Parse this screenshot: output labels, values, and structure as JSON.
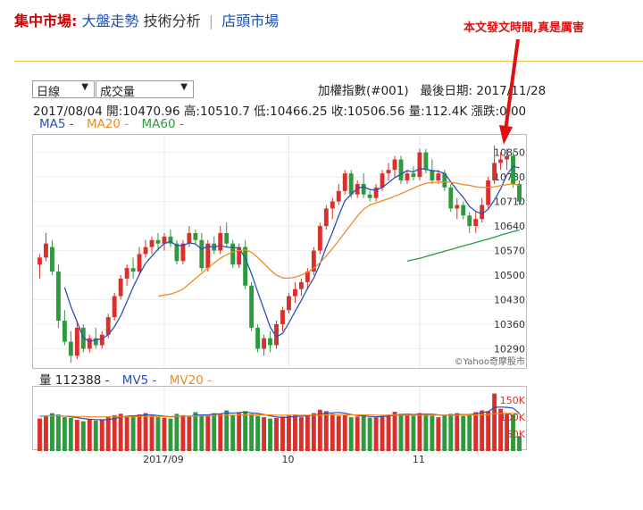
{
  "nav": {
    "market": "集中市場:",
    "trend": "大盤走勢",
    "tech": "技術分析",
    "sep": "|",
    "otc": "店頭市場"
  },
  "annotation": "本文發文時間,真是厲害",
  "controls": {
    "period": "日線",
    "indicator": "成交量"
  },
  "header": {
    "index_name": "加權指數(#001)",
    "last_date_label": "最後日期:",
    "last_date": "2017/11/28"
  },
  "quote": {
    "date": "2017/08/04",
    "open_label": "開:",
    "open": "10470.96",
    "high_label": "高:",
    "high": "10510.7",
    "low_label": "低:",
    "low": "10466.25",
    "close_label": "收:",
    "close": "10506.56",
    "vol_label": "量:",
    "vol": "112.4K",
    "chg_label": "漲跌:",
    "chg": "0.00"
  },
  "ma_legend": [
    {
      "label": "MA5 -",
      "color": "#2b4fb5"
    },
    {
      "label": "MA20 -",
      "color": "#f08a24"
    },
    {
      "label": "MA60 -",
      "color": "#2e9a3e"
    }
  ],
  "vol_legend": [
    {
      "label": "量 112388 -",
      "color": "#222222"
    },
    {
      "label": "MV5 -",
      "color": "#2b4fb5"
    },
    {
      "label": "MV20 -",
      "color": "#f08a24"
    }
  ],
  "watermark": "©Yahoo奇摩股市",
  "colors": {
    "up": "#d9302c",
    "down": "#2e9a3e",
    "ma5": "#2b4fb5",
    "ma20": "#f08a24",
    "ma60": "#2e9a3e",
    "arrow": "#e01010"
  },
  "chart_data": {
    "type": "candlestick",
    "title": "",
    "price_ticks": [
      10850,
      10780,
      10710,
      10640,
      10570,
      10500,
      10430,
      10360,
      10290
    ],
    "price_range": [
      10230,
      10900
    ],
    "volume_ticks": [
      "150K",
      "100K",
      "50K"
    ],
    "volume_range": [
      0,
      190
    ],
    "x_tick_labels": [
      {
        "label": "2017/09",
        "index": 20
      },
      {
        "label": "10",
        "index": 40
      },
      {
        "label": "11",
        "index": 61
      }
    ],
    "candles": [
      {
        "o": 10530,
        "h": 10560,
        "l": 10490,
        "c": 10550
      },
      {
        "o": 10550,
        "h": 10620,
        "l": 10540,
        "c": 10590
      },
      {
        "o": 10580,
        "h": 10600,
        "l": 10500,
        "c": 10510
      },
      {
        "o": 10510,
        "h": 10530,
        "l": 10350,
        "c": 10370
      },
      {
        "o": 10370,
        "h": 10400,
        "l": 10300,
        "c": 10310
      },
      {
        "o": 10310,
        "h": 10340,
        "l": 10250,
        "c": 10270
      },
      {
        "o": 10270,
        "h": 10370,
        "l": 10260,
        "c": 10350
      },
      {
        "o": 10350,
        "h": 10360,
        "l": 10280,
        "c": 10290
      },
      {
        "o": 10290,
        "h": 10330,
        "l": 10280,
        "c": 10320
      },
      {
        "o": 10320,
        "h": 10350,
        "l": 10290,
        "c": 10300
      },
      {
        "o": 10300,
        "h": 10340,
        "l": 10290,
        "c": 10330
      },
      {
        "o": 10330,
        "h": 10390,
        "l": 10320,
        "c": 10380
      },
      {
        "o": 10380,
        "h": 10450,
        "l": 10370,
        "c": 10440
      },
      {
        "o": 10440,
        "h": 10500,
        "l": 10430,
        "c": 10490
      },
      {
        "o": 10490,
        "h": 10530,
        "l": 10470,
        "c": 10520
      },
      {
        "o": 10520,
        "h": 10550,
        "l": 10490,
        "c": 10510
      },
      {
        "o": 10510,
        "h": 10580,
        "l": 10500,
        "c": 10560
      },
      {
        "o": 10560,
        "h": 10600,
        "l": 10550,
        "c": 10580
      },
      {
        "o": 10580,
        "h": 10610,
        "l": 10560,
        "c": 10600
      },
      {
        "o": 10600,
        "h": 10620,
        "l": 10570,
        "c": 10590
      },
      {
        "o": 10590,
        "h": 10620,
        "l": 10570,
        "c": 10610
      },
      {
        "o": 10610,
        "h": 10630,
        "l": 10580,
        "c": 10590
      },
      {
        "o": 10590,
        "h": 10600,
        "l": 10530,
        "c": 10540
      },
      {
        "o": 10540,
        "h": 10600,
        "l": 10530,
        "c": 10590
      },
      {
        "o": 10590,
        "h": 10640,
        "l": 10580,
        "c": 10620
      },
      {
        "o": 10620,
        "h": 10630,
        "l": 10590,
        "c": 10600
      },
      {
        "o": 10600,
        "h": 10620,
        "l": 10510,
        "c": 10520
      },
      {
        "o": 10520,
        "h": 10600,
        "l": 10510,
        "c": 10590
      },
      {
        "o": 10590,
        "h": 10610,
        "l": 10560,
        "c": 10570
      },
      {
        "o": 10570,
        "h": 10640,
        "l": 10560,
        "c": 10620
      },
      {
        "o": 10620,
        "h": 10650,
        "l": 10580,
        "c": 10590
      },
      {
        "o": 10590,
        "h": 10600,
        "l": 10520,
        "c": 10530
      },
      {
        "o": 10530,
        "h": 10590,
        "l": 10520,
        "c": 10580
      },
      {
        "o": 10580,
        "h": 10600,
        "l": 10460,
        "c": 10470
      },
      {
        "o": 10470,
        "h": 10480,
        "l": 10340,
        "c": 10350
      },
      {
        "o": 10350,
        "h": 10360,
        "l": 10280,
        "c": 10290
      },
      {
        "o": 10290,
        "h": 10330,
        "l": 10270,
        "c": 10320
      },
      {
        "o": 10320,
        "h": 10340,
        "l": 10280,
        "c": 10300
      },
      {
        "o": 10300,
        "h": 10370,
        "l": 10290,
        "c": 10360
      },
      {
        "o": 10360,
        "h": 10410,
        "l": 10340,
        "c": 10400
      },
      {
        "o": 10400,
        "h": 10450,
        "l": 10390,
        "c": 10440
      },
      {
        "o": 10440,
        "h": 10480,
        "l": 10420,
        "c": 10460
      },
      {
        "o": 10460,
        "h": 10490,
        "l": 10440,
        "c": 10480
      },
      {
        "o": 10480,
        "h": 10520,
        "l": 10460,
        "c": 10510
      },
      {
        "o": 10510,
        "h": 10580,
        "l": 10500,
        "c": 10570
      },
      {
        "o": 10570,
        "h": 10650,
        "l": 10560,
        "c": 10640
      },
      {
        "o": 10640,
        "h": 10700,
        "l": 10630,
        "c": 10690
      },
      {
        "o": 10690,
        "h": 10720,
        "l": 10660,
        "c": 10710
      },
      {
        "o": 10710,
        "h": 10760,
        "l": 10700,
        "c": 10740
      },
      {
        "o": 10740,
        "h": 10800,
        "l": 10730,
        "c": 10790
      },
      {
        "o": 10790,
        "h": 10800,
        "l": 10720,
        "c": 10730
      },
      {
        "o": 10730,
        "h": 10770,
        "l": 10720,
        "c": 10760
      },
      {
        "o": 10760,
        "h": 10790,
        "l": 10720,
        "c": 10730
      },
      {
        "o": 10730,
        "h": 10740,
        "l": 10710,
        "c": 10720
      },
      {
        "o": 10720,
        "h": 10760,
        "l": 10710,
        "c": 10750
      },
      {
        "o": 10750,
        "h": 10800,
        "l": 10740,
        "c": 10790
      },
      {
        "o": 10790,
        "h": 10820,
        "l": 10770,
        "c": 10800
      },
      {
        "o": 10800,
        "h": 10840,
        "l": 10780,
        "c": 10830
      },
      {
        "o": 10830,
        "h": 10840,
        "l": 10760,
        "c": 10770
      },
      {
        "o": 10770,
        "h": 10800,
        "l": 10760,
        "c": 10790
      },
      {
        "o": 10790,
        "h": 10810,
        "l": 10770,
        "c": 10780
      },
      {
        "o": 10780,
        "h": 10860,
        "l": 10770,
        "c": 10850
      },
      {
        "o": 10850,
        "h": 10860,
        "l": 10790,
        "c": 10800
      },
      {
        "o": 10800,
        "h": 10830,
        "l": 10760,
        "c": 10770
      },
      {
        "o": 10770,
        "h": 10800,
        "l": 10760,
        "c": 10790
      },
      {
        "o": 10790,
        "h": 10800,
        "l": 10740,
        "c": 10750
      },
      {
        "o": 10750,
        "h": 10760,
        "l": 10680,
        "c": 10690
      },
      {
        "o": 10690,
        "h": 10720,
        "l": 10660,
        "c": 10700
      },
      {
        "o": 10700,
        "h": 10710,
        "l": 10660,
        "c": 10670
      },
      {
        "o": 10670,
        "h": 10680,
        "l": 10620,
        "c": 10640
      },
      {
        "o": 10640,
        "h": 10680,
        "l": 10620,
        "c": 10660
      },
      {
        "o": 10660,
        "h": 10720,
        "l": 10650,
        "c": 10700
      },
      {
        "o": 10700,
        "h": 10780,
        "l": 10690,
        "c": 10770
      },
      {
        "o": 10770,
        "h": 10870,
        "l": 10760,
        "c": 10820
      },
      {
        "o": 10820,
        "h": 10850,
        "l": 10800,
        "c": 10830
      },
      {
        "o": 10830,
        "h": 10860,
        "l": 10800,
        "c": 10840
      },
      {
        "o": 10840,
        "h": 10850,
        "l": 10750,
        "c": 10760
      },
      {
        "o": 10760,
        "h": 10770,
        "l": 10700,
        "c": 10710
      }
    ],
    "volume": [
      96,
      104,
      112,
      108,
      100,
      98,
      92,
      88,
      95,
      90,
      94,
      100,
      106,
      110,
      104,
      102,
      108,
      112,
      105,
      100,
      98,
      96,
      110,
      106,
      102,
      115,
      108,
      104,
      112,
      110,
      120,
      106,
      112,
      118,
      110,
      104,
      100,
      96,
      98,
      102,
      105,
      108,
      100,
      106,
      112,
      122,
      118,
      110,
      104,
      108,
      100,
      102,
      105,
      99,
      100,
      104,
      108,
      116,
      110,
      106,
      104,
      112,
      108,
      104,
      100,
      106,
      110,
      112,
      104,
      108,
      115,
      120,
      118,
      170,
      125,
      112,
      108,
      44
    ],
    "mv5": [
      103,
      104,
      105,
      104,
      103,
      101,
      99,
      96,
      94,
      93,
      92,
      93,
      96,
      100,
      103,
      104,
      105,
      107,
      107,
      105,
      103,
      101,
      102,
      103,
      103,
      106,
      107,
      107,
      109,
      110,
      113,
      112,
      114,
      115,
      113,
      111,
      108,
      104,
      101,
      99,
      100,
      102,
      103,
      104,
      106,
      110,
      112,
      113,
      114,
      112,
      108,
      105,
      104,
      102,
      101,
      102,
      103,
      106,
      108,
      109,
      108,
      109,
      109,
      109,
      107,
      106,
      106,
      108,
      108,
      108,
      110,
      114,
      116,
      129,
      130,
      129,
      127,
      112
    ],
    "mv20": [
      104,
      104,
      104,
      104,
      103,
      103,
      102,
      102,
      101,
      101,
      101,
      101,
      101,
      101,
      101,
      101,
      102,
      102,
      102,
      102,
      102,
      102,
      103,
      103,
      103,
      104,
      104,
      104,
      105,
      105,
      106,
      106,
      106,
      107,
      107,
      107,
      107,
      107,
      106,
      106,
      106,
      106,
      106,
      106,
      106,
      106,
      107,
      107,
      107,
      107,
      107,
      107,
      107,
      107,
      106,
      106,
      106,
      106,
      106,
      106,
      106,
      106,
      106,
      106,
      106,
      106,
      106,
      106,
      107,
      107,
      107,
      107,
      108,
      110,
      111,
      111,
      111,
      110
    ],
    "series": [
      {
        "name": "MA5",
        "values": [
          null,
          null,
          null,
          null,
          10465,
          10410,
          10367,
          10322,
          10310,
          10316,
          10318,
          10330,
          10353,
          10384,
          10424,
          10466,
          10502,
          10534,
          10554,
          10574,
          10590,
          10596,
          10584,
          10584,
          10592,
          10589,
          10574,
          10582,
          10580,
          10584,
          10580,
          10578,
          10578,
          10548,
          10504,
          10452,
          10402,
          10352,
          10324,
          10334,
          10364,
          10396,
          10428,
          10462,
          10492,
          10532,
          10580,
          10622,
          10670,
          10712,
          10730,
          10748,
          10752,
          10744,
          10742,
          10750,
          10764,
          10778,
          10788,
          10798,
          10794,
          10804,
          10802,
          10798,
          10796,
          10790,
          10766,
          10742,
          10722,
          10696,
          10682,
          10674,
          10688,
          10714,
          10746,
          10786,
          10810,
          10806
        ]
      },
      {
        "name": "MA20",
        "values": [
          null,
          null,
          null,
          null,
          null,
          null,
          null,
          null,
          null,
          null,
          null,
          null,
          null,
          null,
          null,
          null,
          null,
          null,
          null,
          10440,
          10443,
          10446,
          10452,
          10460,
          10475,
          10490,
          10505,
          10520,
          10535,
          10548,
          10558,
          10566,
          10570,
          10572,
          10565,
          10550,
          10533,
          10515,
          10500,
          10492,
          10491,
          10494,
          10500,
          10508,
          10520,
          10535,
          10555,
          10576,
          10598,
          10622,
          10645,
          10668,
          10688,
          10700,
          10706,
          10712,
          10718,
          10725,
          10732,
          10740,
          10748,
          10756,
          10762,
          10764,
          10765,
          10766,
          10765,
          10762,
          10758,
          10756,
          10752,
          10750,
          10750,
          10752,
          10755,
          10758,
          10760,
          10756
        ]
      },
      {
        "name": "MA60",
        "values": [
          null,
          null,
          null,
          null,
          null,
          null,
          null,
          null,
          null,
          null,
          null,
          null,
          null,
          null,
          null,
          null,
          null,
          null,
          null,
          null,
          null,
          null,
          null,
          null,
          null,
          null,
          null,
          null,
          null,
          null,
          null,
          null,
          null,
          null,
          null,
          null,
          null,
          null,
          null,
          null,
          null,
          null,
          null,
          null,
          null,
          null,
          null,
          null,
          null,
          null,
          null,
          null,
          null,
          null,
          null,
          null,
          null,
          null,
          null,
          10540,
          10544,
          10548,
          10553,
          10558,
          10563,
          10568,
          10573,
          10578,
          10583,
          10588,
          10593,
          10598,
          10603,
          10608,
          10614,
          10619,
          10624,
          10628
        ]
      }
    ]
  }
}
